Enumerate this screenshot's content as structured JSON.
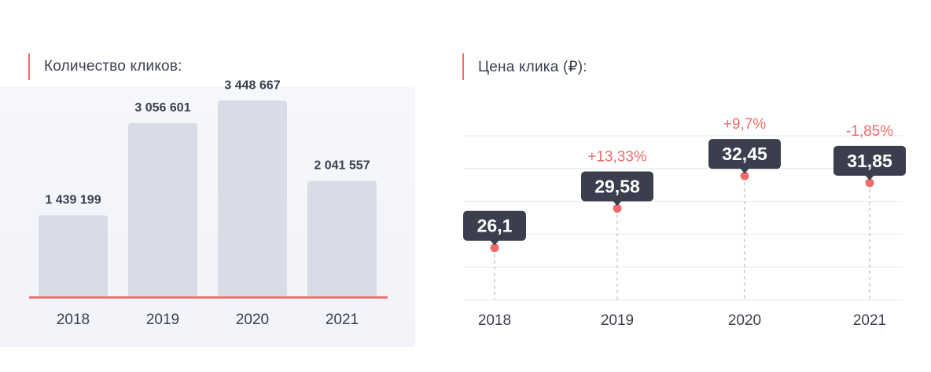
{
  "colors": {
    "accent": "#ef6b6b",
    "bar": "#d9dce6",
    "tag_bg": "#3b3f4d",
    "grid": "#e6e8ee",
    "text": "#3c4050"
  },
  "left_chart": {
    "heading": "Количество кликов:"
  },
  "right_chart": {
    "heading": "Цена клика (₽):"
  },
  "chart_data": [
    {
      "type": "bar",
      "title": "Количество кликов:",
      "categories": [
        "2018",
        "2019",
        "2020",
        "2021"
      ],
      "values": [
        1439199,
        3056601,
        3448667,
        2041557
      ],
      "value_labels": [
        "1 439 199",
        "3 056 601",
        "3 448 667",
        "2 041 557"
      ],
      "ylim": [
        0,
        3700000
      ],
      "grid": false,
      "legend": "none"
    },
    {
      "type": "line",
      "title": "Цена клика (₽):",
      "categories": [
        "2018",
        "2019",
        "2020",
        "2021"
      ],
      "values": [
        26.1,
        29.58,
        32.45,
        31.85
      ],
      "value_labels": [
        "26,1",
        "29,58",
        "32,45",
        "31,85"
      ],
      "change_labels": [
        "",
        "+13,33%",
        "+9,7%",
        "-1,85%"
      ],
      "ylim": [
        21.5,
        36
      ],
      "grid": true,
      "legend": "none"
    }
  ]
}
